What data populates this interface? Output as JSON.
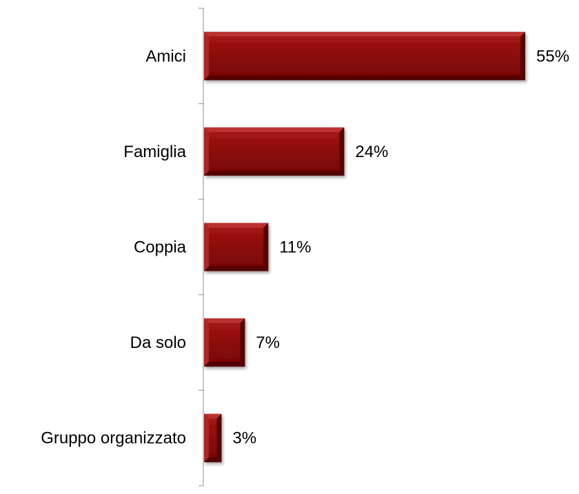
{
  "chart_data": {
    "type": "bar",
    "orientation": "horizontal",
    "categories": [
      "Amici",
      "Famiglia",
      "Coppia",
      "Da solo",
      "Gruppo organizzato"
    ],
    "values": [
      55,
      24,
      11,
      7,
      3
    ],
    "value_labels": [
      "55%",
      "24%",
      "11%",
      "7%",
      "3%"
    ],
    "unit": "%",
    "xlim": [
      0,
      55
    ],
    "title": "",
    "xlabel": "",
    "ylabel": "",
    "grid": false,
    "legend": "none",
    "bar_color": "#8b0a0a",
    "bar_highlight": "#c23a3a",
    "bar_shadow": "#4d0000"
  }
}
